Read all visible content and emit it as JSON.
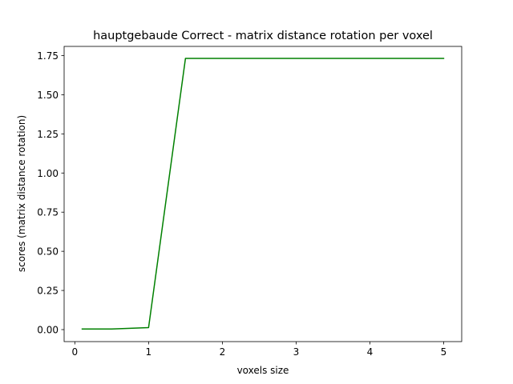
{
  "chart_data": {
    "type": "line",
    "title": "hauptgebaude Correct - matrix distance rotation per voxel",
    "xlabel": "voxels size",
    "ylabel": "scores (matrix distance rotation)",
    "xlim": [
      -0.145,
      5.245
    ],
    "ylim": [
      -0.0766,
      1.8086
    ],
    "xticks": [
      0,
      1,
      2,
      3,
      4,
      5
    ],
    "yticks": [
      0.0,
      0.25,
      0.5,
      0.75,
      1.0,
      1.25,
      1.5,
      1.75
    ],
    "xtick_labels": [
      "0",
      "1",
      "2",
      "3",
      "4",
      "5"
    ],
    "ytick_labels": [
      "0.00",
      "0.25",
      "0.50",
      "0.75",
      "1.00",
      "1.25",
      "1.50",
      "1.75"
    ],
    "grid": false,
    "series": [
      {
        "color": "#008000",
        "x": [
          0.1,
          0.5,
          1.0,
          1.5,
          2.0,
          2.5,
          3.0,
          3.5,
          4.0,
          4.5,
          5.0
        ],
        "y": [
          0.004,
          0.004,
          0.013,
          1.732,
          1.732,
          1.732,
          1.732,
          1.732,
          1.732,
          1.732,
          1.732
        ]
      }
    ]
  }
}
